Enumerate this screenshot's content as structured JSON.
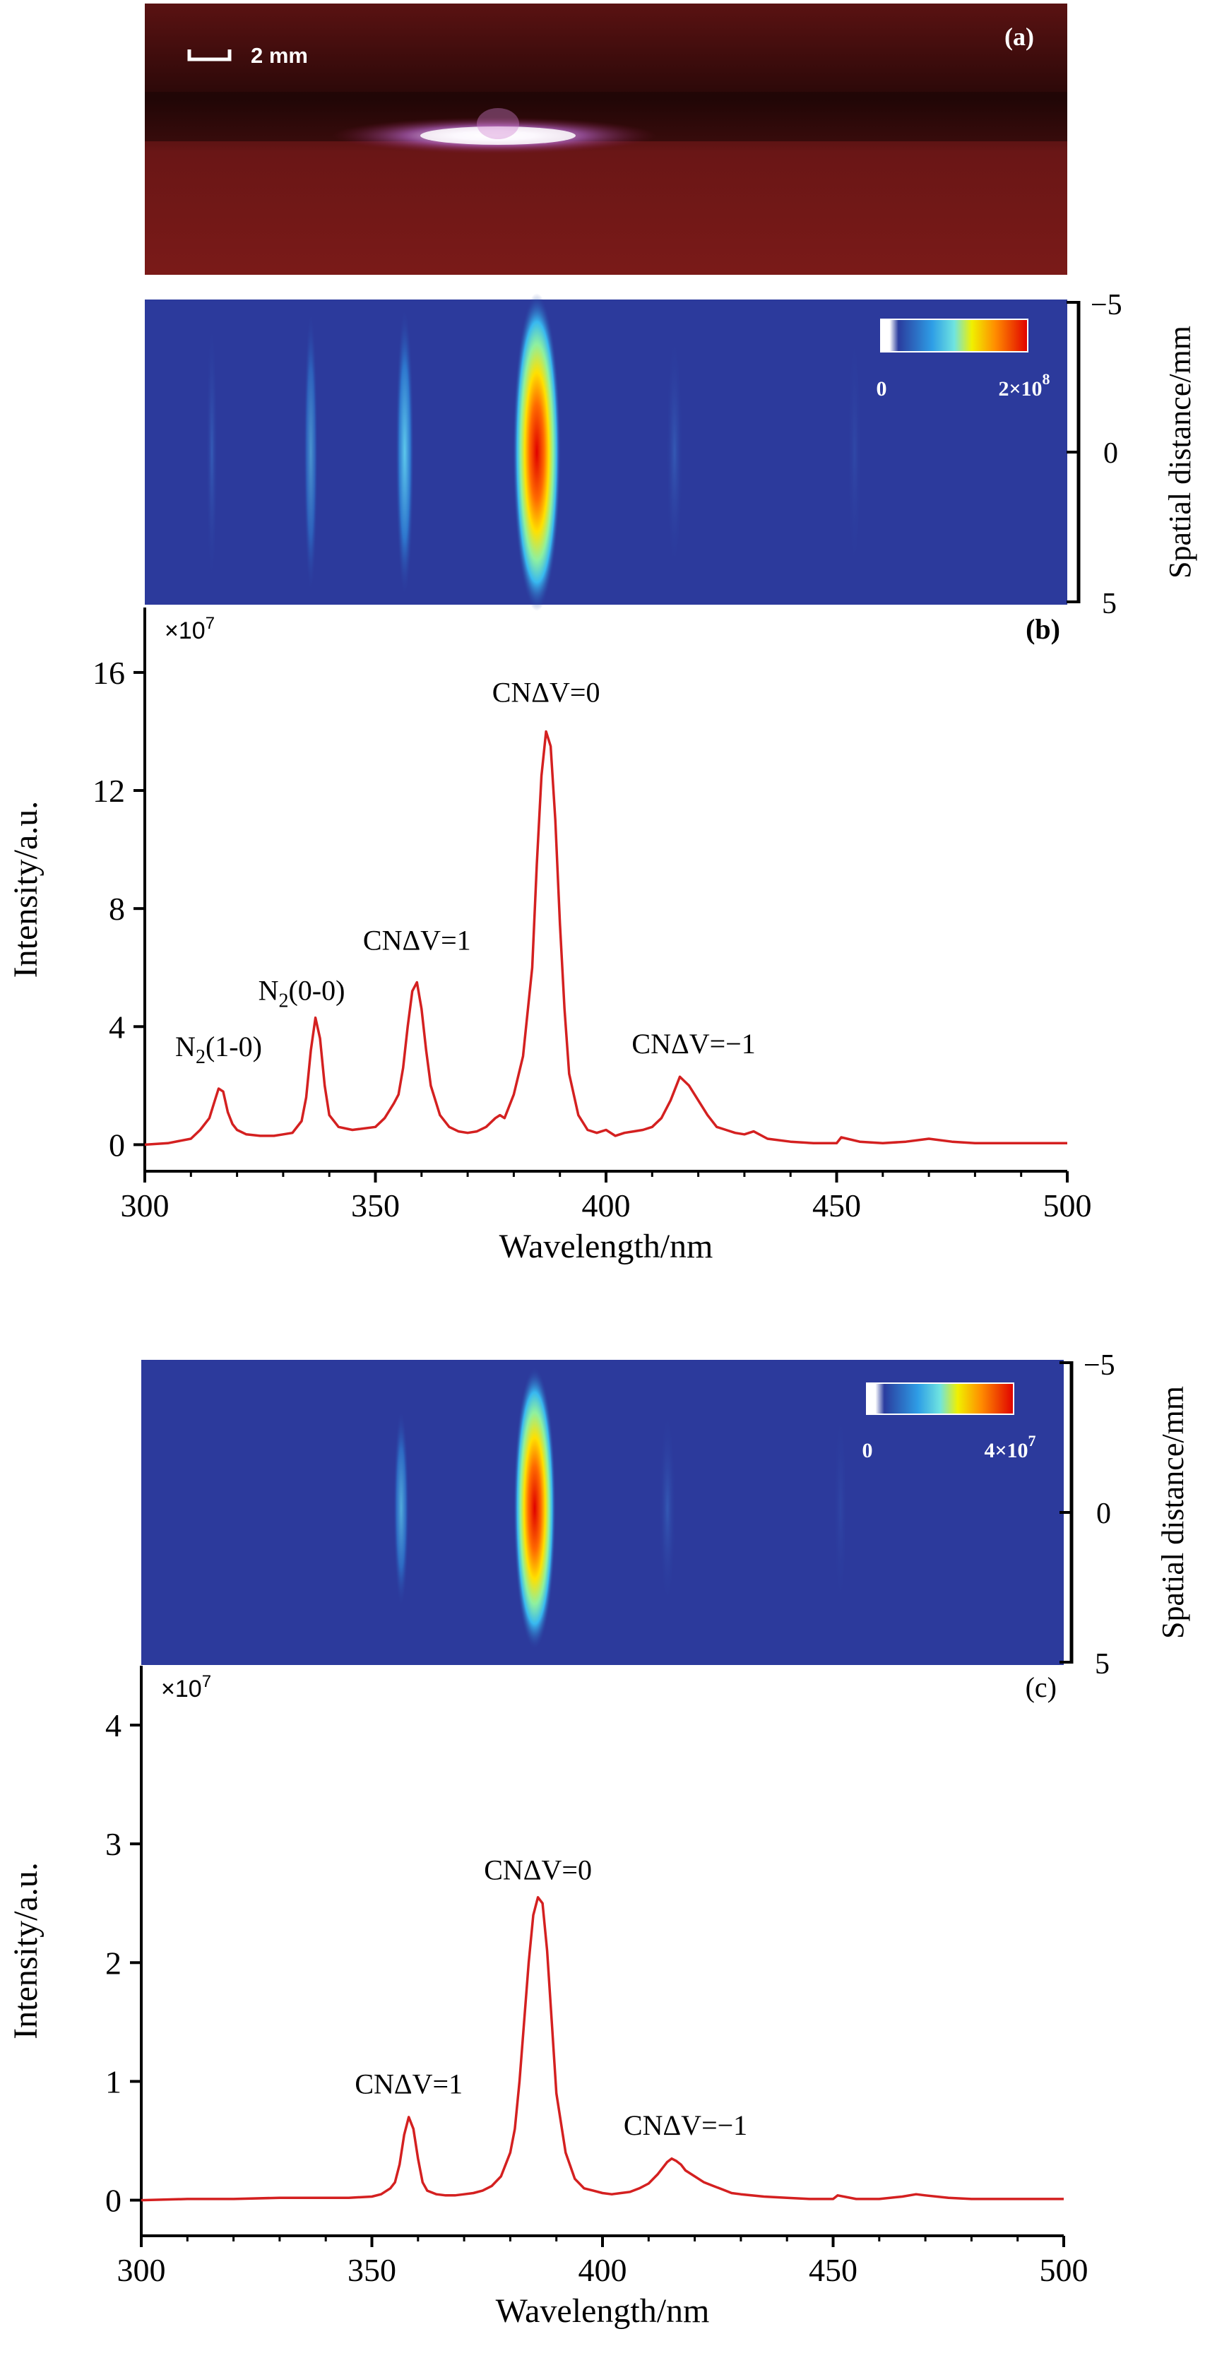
{
  "panel_a": {
    "label": "(a)",
    "scale_bar": "2 mm"
  },
  "image_b": {
    "colorbar_min": "0",
    "colorbar_max": "2×10",
    "colorbar_max_exp": "8",
    "spatial_axis_label": "Spatial distance/mm",
    "spatial_ticks": [
      "−5",
      "0",
      "5"
    ]
  },
  "image_c": {
    "colorbar_min": "0",
    "colorbar_max": "4×10",
    "colorbar_max_exp": "7",
    "spatial_axis_label": "Spatial distance/mm",
    "spatial_ticks": [
      "−5",
      "0",
      "5"
    ]
  },
  "chart_data": [
    {
      "type": "line",
      "panel_label": "(b)",
      "scale_note": "×10",
      "scale_note_exp": "7",
      "xlabel": "Wavelength/nm",
      "ylabel": "Intensity/a.u.",
      "xlim": [
        300,
        500
      ],
      "ylim": [
        -0.9,
        18.2
      ],
      "xticks": [
        300,
        350,
        400,
        450,
        500
      ],
      "yticks": [
        0,
        4,
        8,
        12,
        16
      ],
      "line_color": "#d42020",
      "annotations": [
        {
          "text": "N",
          "sub": "2",
          "rest": "(1-0)",
          "x": 316,
          "y": 3.0
        },
        {
          "text": "N",
          "sub": "2",
          "rest": "(0-0)",
          "x": 334,
          "y": 4.9
        },
        {
          "text": "CNΔV=1",
          "x": 359,
          "y": 6.6
        },
        {
          "text": "CNΔV=0",
          "x": 387,
          "y": 15.0
        },
        {
          "text": "CNΔV=−1",
          "x": 419,
          "y": 3.1
        }
      ],
      "series": [
        {
          "x": [
            300,
            305,
            310,
            312,
            314,
            315,
            316,
            317,
            318,
            319,
            320,
            322,
            325,
            328,
            330,
            332,
            334,
            335,
            336,
            337,
            338,
            339,
            340,
            342,
            345,
            350,
            352,
            354,
            355,
            356,
            357,
            358,
            359,
            360,
            361,
            362,
            364,
            366,
            368,
            370,
            372,
            374,
            376,
            377,
            378,
            380,
            382,
            384,
            385,
            386,
            387,
            388,
            389,
            390,
            391,
            392,
            394,
            396,
            398,
            400,
            402,
            404,
            406,
            408,
            410,
            412,
            414,
            416,
            418,
            420,
            422,
            424,
            426,
            428,
            430,
            432,
            435,
            440,
            445,
            450,
            451,
            455,
            460,
            465,
            470,
            475,
            480,
            485,
            490,
            495,
            500
          ],
          "y": [
            0.0,
            0.05,
            0.2,
            0.5,
            0.9,
            1.4,
            1.9,
            1.8,
            1.1,
            0.7,
            0.5,
            0.35,
            0.3,
            0.3,
            0.35,
            0.4,
            0.8,
            1.6,
            3.2,
            4.3,
            3.6,
            2.0,
            1.0,
            0.6,
            0.5,
            0.6,
            0.9,
            1.4,
            1.7,
            2.6,
            4.0,
            5.2,
            5.5,
            4.6,
            3.2,
            2.0,
            1.0,
            0.6,
            0.45,
            0.4,
            0.45,
            0.6,
            0.9,
            1.0,
            0.9,
            1.7,
            3.0,
            6.0,
            9.5,
            12.5,
            14.0,
            13.5,
            11.0,
            7.5,
            4.6,
            2.4,
            1.0,
            0.5,
            0.4,
            0.5,
            0.3,
            0.4,
            0.45,
            0.5,
            0.6,
            0.9,
            1.5,
            2.3,
            2.0,
            1.5,
            1.0,
            0.6,
            0.5,
            0.4,
            0.35,
            0.45,
            0.2,
            0.1,
            0.05,
            0.05,
            0.25,
            0.1,
            0.05,
            0.1,
            0.2,
            0.1,
            0.05,
            0.05,
            0.05,
            0.05,
            0.05
          ]
        }
      ]
    },
    {
      "type": "line",
      "panel_label": "(c)",
      "scale_note": "×10",
      "scale_note_exp": "7",
      "xlabel": "Wavelength/nm",
      "ylabel": "Intensity/a.u.",
      "xlim": [
        300,
        500
      ],
      "ylim": [
        -0.3,
        4.5
      ],
      "xticks": [
        300,
        350,
        400,
        450,
        500
      ],
      "yticks": [
        0,
        1,
        2,
        3,
        4
      ],
      "line_color": "#d42020",
      "annotations": [
        {
          "text": "CNΔV=1",
          "x": 358,
          "y": 0.9
        },
        {
          "text": "CNΔV=0",
          "x": 386,
          "y": 2.7
        },
        {
          "text": "CNΔV=−1",
          "x": 418,
          "y": 0.55
        }
      ],
      "series": [
        {
          "x": [
            300,
            310,
            320,
            330,
            340,
            345,
            350,
            352,
            354,
            355,
            356,
            357,
            358,
            359,
            360,
            361,
            362,
            364,
            366,
            368,
            370,
            372,
            374,
            376,
            378,
            380,
            381,
            382,
            383,
            384,
            385,
            386,
            387,
            388,
            389,
            390,
            392,
            394,
            396,
            398,
            400,
            402,
            404,
            406,
            408,
            410,
            412,
            414,
            415,
            416,
            417,
            418,
            420,
            422,
            424,
            426,
            428,
            430,
            435,
            440,
            445,
            450,
            451,
            455,
            460,
            465,
            468,
            470,
            475,
            480,
            490,
            500
          ],
          "y": [
            0.0,
            0.01,
            0.01,
            0.02,
            0.02,
            0.02,
            0.03,
            0.05,
            0.1,
            0.15,
            0.3,
            0.55,
            0.7,
            0.6,
            0.35,
            0.15,
            0.08,
            0.05,
            0.04,
            0.04,
            0.05,
            0.06,
            0.08,
            0.12,
            0.2,
            0.4,
            0.6,
            1.0,
            1.5,
            2.0,
            2.4,
            2.55,
            2.5,
            2.1,
            1.5,
            0.9,
            0.4,
            0.18,
            0.1,
            0.08,
            0.06,
            0.05,
            0.06,
            0.07,
            0.1,
            0.14,
            0.22,
            0.32,
            0.35,
            0.33,
            0.3,
            0.25,
            0.2,
            0.15,
            0.12,
            0.09,
            0.06,
            0.05,
            0.03,
            0.02,
            0.01,
            0.01,
            0.04,
            0.01,
            0.01,
            0.03,
            0.05,
            0.04,
            0.02,
            0.01,
            0.01,
            0.01
          ]
        }
      ]
    }
  ]
}
